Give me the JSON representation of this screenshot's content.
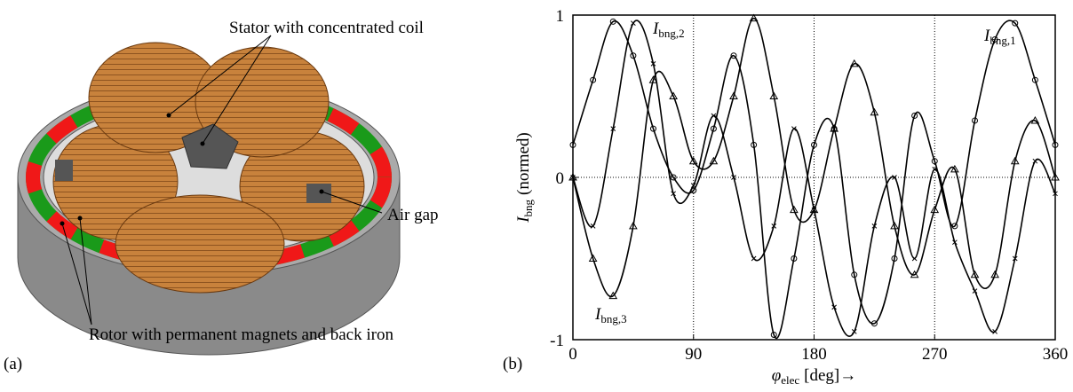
{
  "figure_a": {
    "label": "(a)",
    "annotations": [
      "Stator with concentrated coil",
      "Air gap",
      "Rotor with permanent magnets and back iron"
    ]
  },
  "chart_data": {
    "type": "line",
    "panel_label": "(b)",
    "x_label": {
      "symbol": "φ",
      "subscript": "elec",
      "unit": "[deg]→"
    },
    "y_label": {
      "symbol": "I",
      "subscript": "bng",
      "unit": "(normed)"
    },
    "x": [
      0,
      15,
      30,
      45,
      60,
      75,
      90,
      105,
      120,
      135,
      150,
      165,
      180,
      195,
      210,
      225,
      240,
      255,
      270,
      285,
      300,
      315,
      330,
      345,
      360
    ],
    "series": [
      {
        "name": "I",
        "subscript": "bng,1",
        "color": "#000",
        "marker": "circle",
        "values": [
          0.2,
          0.6,
          0.96,
          0.75,
          0.3,
          0.0,
          -0.08,
          0.3,
          0.75,
          0.2,
          -0.97,
          -0.5,
          0.2,
          0.3,
          -0.6,
          -0.9,
          -0.5,
          0.38,
          0.1,
          -0.3,
          0.35,
          0.85,
          0.95,
          0.6,
          0.2
        ]
      },
      {
        "name": "I",
        "subscript": "bng,2",
        "color": "#000",
        "marker": "x",
        "values": [
          0,
          -0.3,
          0.3,
          0.95,
          0.7,
          -0.1,
          -0.05,
          0.38,
          0.0,
          -0.5,
          -0.3,
          0.3,
          -0.2,
          -0.8,
          -0.95,
          -0.3,
          0.0,
          -0.5,
          0.05,
          -0.4,
          -0.7,
          -0.95,
          -0.5,
          0.1,
          -0.1
        ]
      },
      {
        "name": "I",
        "subscript": "bng,3",
        "color": "#000",
        "marker": "triangle",
        "values": [
          0,
          -0.5,
          -0.73,
          -0.3,
          0.6,
          0.5,
          0.1,
          0.1,
          0.5,
          0.98,
          0.5,
          -0.2,
          -0.2,
          0.3,
          0.7,
          0.4,
          -0.3,
          -0.6,
          -0.2,
          0.05,
          -0.6,
          -0.6,
          0.1,
          0.35,
          0.0
        ]
      }
    ],
    "xlim": [
      0,
      360
    ],
    "xticks": [
      0,
      90,
      180,
      270,
      360
    ],
    "ylim": [
      -1,
      1
    ],
    "yticks": [
      -1,
      0,
      1
    ],
    "grid": true
  }
}
